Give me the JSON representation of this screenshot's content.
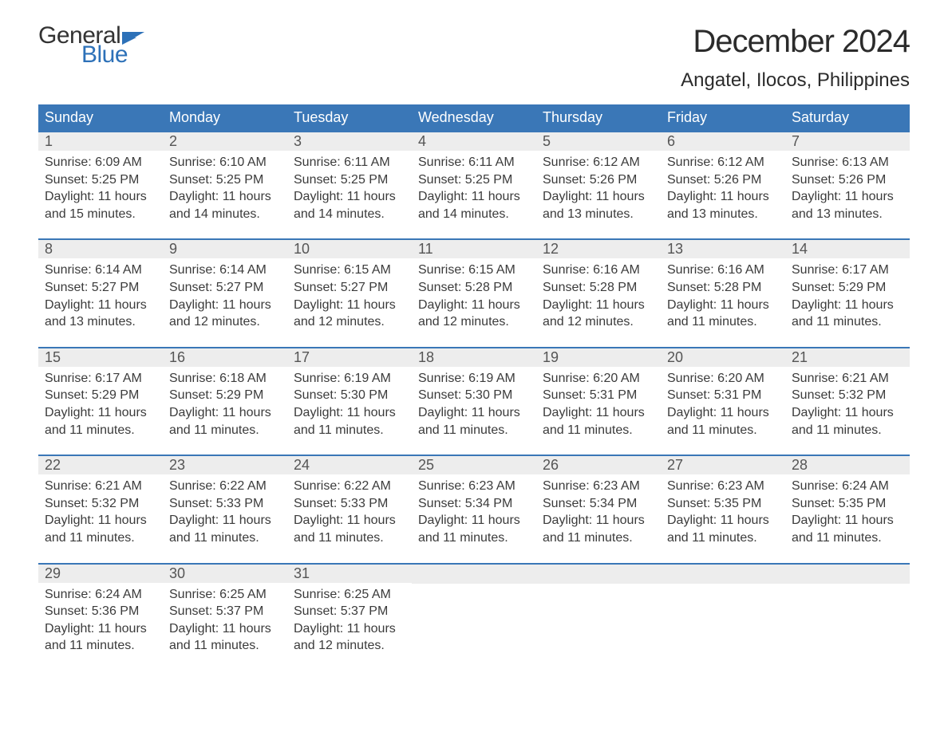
{
  "brand": {
    "general": "General",
    "blue": "Blue",
    "general_color": "#333333",
    "blue_color": "#2d71b8",
    "icon_color": "#2d71b8"
  },
  "header": {
    "month_title": "December 2024",
    "location": "Angatel, Ilocos, Philippines"
  },
  "styling": {
    "page_bg": "#ffffff",
    "header_bg": "#3a77b7",
    "header_text": "#ffffff",
    "daynum_bg": "#ededed",
    "daynum_color": "#555555",
    "body_text": "#3b3b3b",
    "week_border": "#3a77b7",
    "title_fontsize": 40,
    "location_fontsize": 24,
    "dayhead_fontsize": 18,
    "daynum_fontsize": 18,
    "body_fontsize": 16
  },
  "day_headers": [
    "Sunday",
    "Monday",
    "Tuesday",
    "Wednesday",
    "Thursday",
    "Friday",
    "Saturday"
  ],
  "weeks": [
    [
      {
        "num": "1",
        "sunrise": "Sunrise: 6:09 AM",
        "sunset": "Sunset: 5:25 PM",
        "daylight1": "Daylight: 11 hours",
        "daylight2": "and 15 minutes."
      },
      {
        "num": "2",
        "sunrise": "Sunrise: 6:10 AM",
        "sunset": "Sunset: 5:25 PM",
        "daylight1": "Daylight: 11 hours",
        "daylight2": "and 14 minutes."
      },
      {
        "num": "3",
        "sunrise": "Sunrise: 6:11 AM",
        "sunset": "Sunset: 5:25 PM",
        "daylight1": "Daylight: 11 hours",
        "daylight2": "and 14 minutes."
      },
      {
        "num": "4",
        "sunrise": "Sunrise: 6:11 AM",
        "sunset": "Sunset: 5:25 PM",
        "daylight1": "Daylight: 11 hours",
        "daylight2": "and 14 minutes."
      },
      {
        "num": "5",
        "sunrise": "Sunrise: 6:12 AM",
        "sunset": "Sunset: 5:26 PM",
        "daylight1": "Daylight: 11 hours",
        "daylight2": "and 13 minutes."
      },
      {
        "num": "6",
        "sunrise": "Sunrise: 6:12 AM",
        "sunset": "Sunset: 5:26 PM",
        "daylight1": "Daylight: 11 hours",
        "daylight2": "and 13 minutes."
      },
      {
        "num": "7",
        "sunrise": "Sunrise: 6:13 AM",
        "sunset": "Sunset: 5:26 PM",
        "daylight1": "Daylight: 11 hours",
        "daylight2": "and 13 minutes."
      }
    ],
    [
      {
        "num": "8",
        "sunrise": "Sunrise: 6:14 AM",
        "sunset": "Sunset: 5:27 PM",
        "daylight1": "Daylight: 11 hours",
        "daylight2": "and 13 minutes."
      },
      {
        "num": "9",
        "sunrise": "Sunrise: 6:14 AM",
        "sunset": "Sunset: 5:27 PM",
        "daylight1": "Daylight: 11 hours",
        "daylight2": "and 12 minutes."
      },
      {
        "num": "10",
        "sunrise": "Sunrise: 6:15 AM",
        "sunset": "Sunset: 5:27 PM",
        "daylight1": "Daylight: 11 hours",
        "daylight2": "and 12 minutes."
      },
      {
        "num": "11",
        "sunrise": "Sunrise: 6:15 AM",
        "sunset": "Sunset: 5:28 PM",
        "daylight1": "Daylight: 11 hours",
        "daylight2": "and 12 minutes."
      },
      {
        "num": "12",
        "sunrise": "Sunrise: 6:16 AM",
        "sunset": "Sunset: 5:28 PM",
        "daylight1": "Daylight: 11 hours",
        "daylight2": "and 12 minutes."
      },
      {
        "num": "13",
        "sunrise": "Sunrise: 6:16 AM",
        "sunset": "Sunset: 5:28 PM",
        "daylight1": "Daylight: 11 hours",
        "daylight2": "and 11 minutes."
      },
      {
        "num": "14",
        "sunrise": "Sunrise: 6:17 AM",
        "sunset": "Sunset: 5:29 PM",
        "daylight1": "Daylight: 11 hours",
        "daylight2": "and 11 minutes."
      }
    ],
    [
      {
        "num": "15",
        "sunrise": "Sunrise: 6:17 AM",
        "sunset": "Sunset: 5:29 PM",
        "daylight1": "Daylight: 11 hours",
        "daylight2": "and 11 minutes."
      },
      {
        "num": "16",
        "sunrise": "Sunrise: 6:18 AM",
        "sunset": "Sunset: 5:29 PM",
        "daylight1": "Daylight: 11 hours",
        "daylight2": "and 11 minutes."
      },
      {
        "num": "17",
        "sunrise": "Sunrise: 6:19 AM",
        "sunset": "Sunset: 5:30 PM",
        "daylight1": "Daylight: 11 hours",
        "daylight2": "and 11 minutes."
      },
      {
        "num": "18",
        "sunrise": "Sunrise: 6:19 AM",
        "sunset": "Sunset: 5:30 PM",
        "daylight1": "Daylight: 11 hours",
        "daylight2": "and 11 minutes."
      },
      {
        "num": "19",
        "sunrise": "Sunrise: 6:20 AM",
        "sunset": "Sunset: 5:31 PM",
        "daylight1": "Daylight: 11 hours",
        "daylight2": "and 11 minutes."
      },
      {
        "num": "20",
        "sunrise": "Sunrise: 6:20 AM",
        "sunset": "Sunset: 5:31 PM",
        "daylight1": "Daylight: 11 hours",
        "daylight2": "and 11 minutes."
      },
      {
        "num": "21",
        "sunrise": "Sunrise: 6:21 AM",
        "sunset": "Sunset: 5:32 PM",
        "daylight1": "Daylight: 11 hours",
        "daylight2": "and 11 minutes."
      }
    ],
    [
      {
        "num": "22",
        "sunrise": "Sunrise: 6:21 AM",
        "sunset": "Sunset: 5:32 PM",
        "daylight1": "Daylight: 11 hours",
        "daylight2": "and 11 minutes."
      },
      {
        "num": "23",
        "sunrise": "Sunrise: 6:22 AM",
        "sunset": "Sunset: 5:33 PM",
        "daylight1": "Daylight: 11 hours",
        "daylight2": "and 11 minutes."
      },
      {
        "num": "24",
        "sunrise": "Sunrise: 6:22 AM",
        "sunset": "Sunset: 5:33 PM",
        "daylight1": "Daylight: 11 hours",
        "daylight2": "and 11 minutes."
      },
      {
        "num": "25",
        "sunrise": "Sunrise: 6:23 AM",
        "sunset": "Sunset: 5:34 PM",
        "daylight1": "Daylight: 11 hours",
        "daylight2": "and 11 minutes."
      },
      {
        "num": "26",
        "sunrise": "Sunrise: 6:23 AM",
        "sunset": "Sunset: 5:34 PM",
        "daylight1": "Daylight: 11 hours",
        "daylight2": "and 11 minutes."
      },
      {
        "num": "27",
        "sunrise": "Sunrise: 6:23 AM",
        "sunset": "Sunset: 5:35 PM",
        "daylight1": "Daylight: 11 hours",
        "daylight2": "and 11 minutes."
      },
      {
        "num": "28",
        "sunrise": "Sunrise: 6:24 AM",
        "sunset": "Sunset: 5:35 PM",
        "daylight1": "Daylight: 11 hours",
        "daylight2": "and 11 minutes."
      }
    ],
    [
      {
        "num": "29",
        "sunrise": "Sunrise: 6:24 AM",
        "sunset": "Sunset: 5:36 PM",
        "daylight1": "Daylight: 11 hours",
        "daylight2": "and 11 minutes."
      },
      {
        "num": "30",
        "sunrise": "Sunrise: 6:25 AM",
        "sunset": "Sunset: 5:37 PM",
        "daylight1": "Daylight: 11 hours",
        "daylight2": "and 11 minutes."
      },
      {
        "num": "31",
        "sunrise": "Sunrise: 6:25 AM",
        "sunset": "Sunset: 5:37 PM",
        "daylight1": "Daylight: 11 hours",
        "daylight2": "and 12 minutes."
      },
      {
        "empty": true
      },
      {
        "empty": true
      },
      {
        "empty": true
      },
      {
        "empty": true
      }
    ]
  ]
}
